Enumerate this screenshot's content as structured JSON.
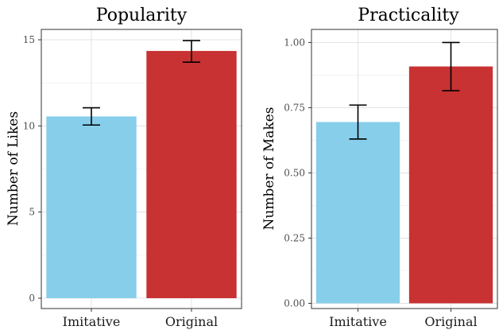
{
  "chart_data": [
    {
      "type": "bar",
      "title": "Popularity",
      "xlabel": "",
      "ylabel": "Number of Likes",
      "categories": [
        "Imitative",
        "Original"
      ],
      "values": [
        10.55,
        14.35
      ],
      "error_low": [
        10.05,
        13.7
      ],
      "error_high": [
        11.05,
        14.95
      ],
      "colors": [
        "#87CEEB",
        "#C83232"
      ],
      "ylim": [
        -0.6,
        15.6
      ],
      "yticks": [
        0,
        5,
        10,
        15
      ],
      "ytick_labels": [
        "0",
        "5",
        "10",
        "15"
      ],
      "grid": true
    },
    {
      "type": "bar",
      "title": "Practicality",
      "xlabel": "",
      "ylabel": "Number of Makes",
      "categories": [
        "Imitative",
        "Original"
      ],
      "values": [
        0.695,
        0.908
      ],
      "error_low": [
        0.63,
        0.815
      ],
      "error_high": [
        0.76,
        1.0
      ],
      "colors": [
        "#87CEEB",
        "#C83232"
      ],
      "ylim": [
        -0.02,
        1.05
      ],
      "yticks": [
        0,
        0.25,
        0.5,
        0.75,
        1.0
      ],
      "ytick_labels": [
        "0.00",
        "0.25",
        "0.50",
        "0.75",
        "1.00"
      ],
      "grid": true
    }
  ]
}
